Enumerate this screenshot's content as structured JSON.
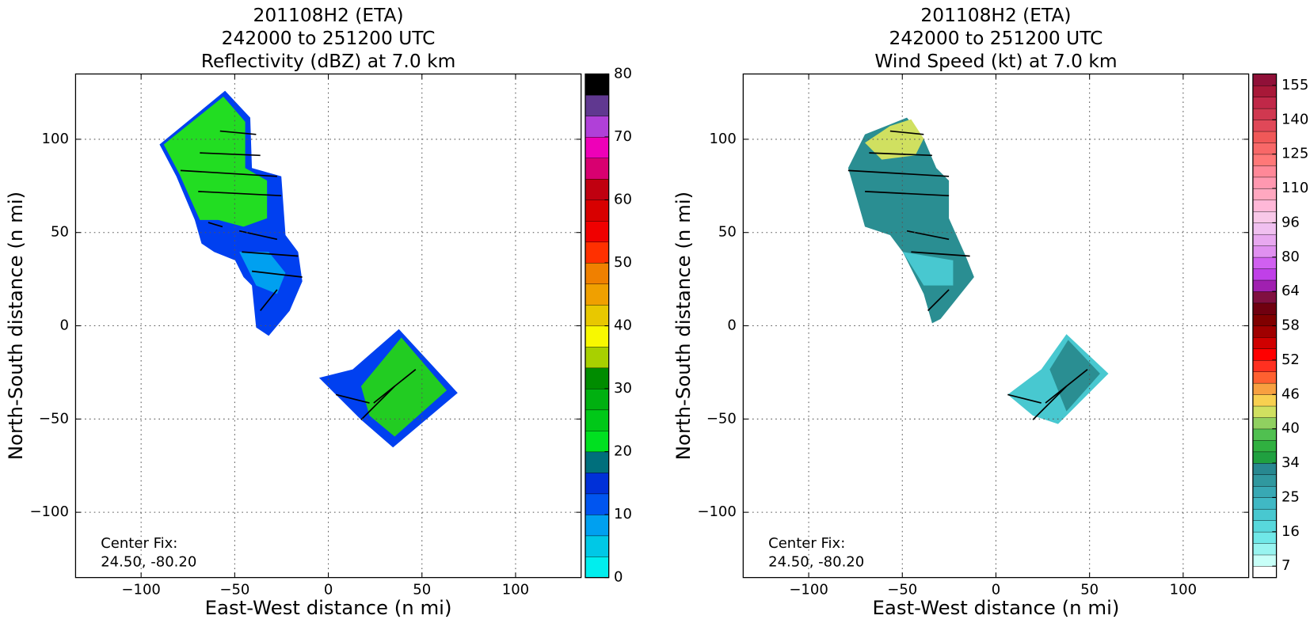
{
  "chart_data": [
    {
      "type": "heatmap",
      "title": [
        "201108H2 (ETA)",
        "242000 to 251200 UTC",
        "Reflectivity (dBZ) at 7.0 km"
      ],
      "x_label": "East-West distance (n mi)",
      "y_label": "North-South distance (n mi)",
      "xlim": [
        -135,
        135
      ],
      "ylim": [
        -135,
        135
      ],
      "xticks": [
        {
          "value": -100,
          "label": "−100"
        },
        {
          "value": -50,
          "label": "−50"
        },
        0,
        50,
        100
      ],
      "yticks": [
        {
          "value": -100,
          "label": "−100"
        },
        {
          "value": -50,
          "label": "−50"
        },
        0,
        50,
        100
      ],
      "grid": true,
      "annotation": [
        "Center Fix:",
        "24.50, -80.20"
      ],
      "colorbar": {
        "ticks": [
          0,
          10,
          20,
          30,
          40,
          50,
          60,
          70,
          80
        ],
        "colors": [
          "#00eeee",
          "#00c8e6",
          "#00a0f0",
          "#0055f0",
          "#0030d8",
          "#006f7c",
          "#00e020",
          "#00c818",
          "#00b010",
          "#008c00",
          "#a8d000",
          "#f8f800",
          "#e8c800",
          "#f0a000",
          "#f08000",
          "#ff3000",
          "#f00000",
          "#d80000",
          "#c00010",
          "#d80070",
          "#ee00b8",
          "#b040d8",
          "#603890",
          "#000000"
        ]
      }
    },
    {
      "type": "heatmap",
      "title": [
        "201108H2 (ETA)",
        "242000 to 251200 UTC",
        "Wind Speed (kt) at 7.0 km"
      ],
      "x_label": "East-West distance (n mi)",
      "y_label": "North-South distance (n mi)",
      "xlim": [
        -135,
        135
      ],
      "ylim": [
        -135,
        135
      ],
      "xticks": [
        {
          "value": -100,
          "label": "−100"
        },
        {
          "value": -50,
          "label": "−50"
        },
        0,
        50,
        100
      ],
      "yticks": [
        {
          "value": -100,
          "label": "−100"
        },
        {
          "value": -50,
          "label": "−50"
        },
        0,
        50,
        100
      ],
      "grid": true,
      "annotation": [
        "Center Fix:",
        "24.50, -80.20"
      ],
      "colorbar": {
        "ticks": [
          7,
          16,
          25,
          34,
          40,
          46,
          52,
          58,
          64,
          80,
          96,
          110,
          125,
          140,
          155
        ],
        "colors": [
          "#ffffff",
          "#c8fff8",
          "#98f4f0",
          "#70e8e8",
          "#58d8dc",
          "#48c8d0",
          "#40b8c4",
          "#38a8b4",
          "#30989f",
          "#288890",
          "#20a040",
          "#30b040",
          "#50c050",
          "#90d060",
          "#d0e060",
          "#f8d050",
          "#f8a040",
          "#ff6030",
          "#ff3020",
          "#ff0000",
          "#d00000",
          "#a00000",
          "#800000",
          "#700010",
          "#801040",
          "#a020b0",
          "#c040e8",
          "#d060f0",
          "#e090f0",
          "#e8a8f0",
          "#f0c0f0",
          "#f8c8e8",
          "#ffb8d8",
          "#ffa8c0",
          "#ff98b0",
          "#ff8898",
          "#ff7878",
          "#f86868",
          "#f05858",
          "#e04858",
          "#d03850",
          "#c02848",
          "#a81838",
          "#901038"
        ]
      }
    }
  ]
}
